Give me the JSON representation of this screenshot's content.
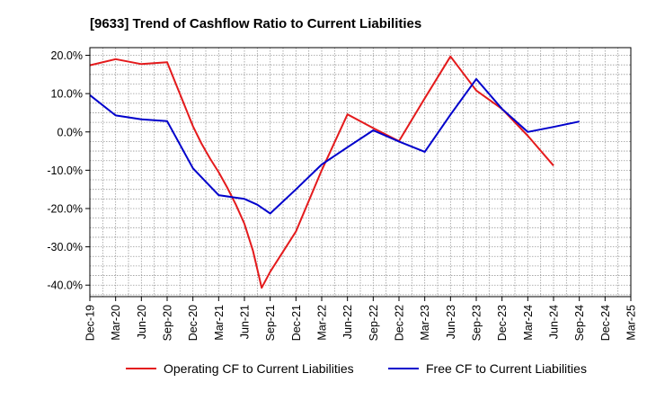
{
  "chart_data": {
    "type": "line",
    "title": "[9633]  Trend of Cashflow Ratio to Current Liabilities",
    "xlabel": "",
    "ylabel": "",
    "categories": [
      "Dec-19",
      "Mar-20",
      "Jun-20",
      "Sep-20",
      "Dec-20",
      "Mar-21",
      "Jun-21",
      "Sep-21",
      "Dec-21",
      "Mar-22",
      "Jun-22",
      "Sep-22",
      "Dec-22",
      "Mar-23",
      "Jun-23",
      "Sep-23",
      "Dec-23",
      "Mar-24",
      "Jun-24",
      "Sep-24",
      "Dec-24",
      "Mar-25"
    ],
    "ylim": [
      -43,
      22
    ],
    "yticks": [
      20,
      10,
      0,
      -10,
      -20,
      -30,
      -40
    ],
    "ytick_labels": [
      "20.0%",
      "10.0%",
      "0.0%",
      "-10.0%",
      "-20.0%",
      "-30.0%",
      "-40.0%"
    ],
    "grid": true,
    "legend_position": "bottom",
    "series": [
      {
        "name": "Operating CF to Current Liabilities",
        "color": "#e41a1c",
        "points": [
          {
            "x": 0,
            "y": 17.4
          },
          {
            "x": 1,
            "y": 19.0
          },
          {
            "x": 2,
            "y": 17.7
          },
          {
            "x": 3,
            "y": 18.2
          },
          {
            "x": 4,
            "y": 1.5
          },
          {
            "x": 4.33,
            "y": -3.0
          },
          {
            "x": 4.67,
            "y": -7.0
          },
          {
            "x": 5,
            "y": -10.5
          },
          {
            "x": 5.33,
            "y": -14.5
          },
          {
            "x": 5.67,
            "y": -19.0
          },
          {
            "x": 6,
            "y": -24.0
          },
          {
            "x": 6.33,
            "y": -31.0
          },
          {
            "x": 6.67,
            "y": -40.7
          },
          {
            "x": 7,
            "y": -36.5
          },
          {
            "x": 8,
            "y": -26.0
          },
          {
            "x": 9,
            "y": -10.0
          },
          {
            "x": 10,
            "y": 4.6
          },
          {
            "x": 11,
            "y": 1.0
          },
          {
            "x": 12,
            "y": -2.4
          },
          {
            "x": 13,
            "y": 8.8
          },
          {
            "x": 14,
            "y": 19.7
          },
          {
            "x": 15,
            "y": 10.8
          },
          {
            "x": 16,
            "y": 6.0
          },
          {
            "x": 17,
            "y": -1.0
          },
          {
            "x": 18,
            "y": -8.8
          }
        ]
      },
      {
        "name": "Free CF to Current Liabilities",
        "color": "#0000cc",
        "points": [
          {
            "x": 0,
            "y": 9.6
          },
          {
            "x": 1,
            "y": 4.3
          },
          {
            "x": 2,
            "y": 3.3
          },
          {
            "x": 3,
            "y": 2.8
          },
          {
            "x": 4,
            "y": -9.5
          },
          {
            "x": 4.5,
            "y": -13.0
          },
          {
            "x": 5,
            "y": -16.5
          },
          {
            "x": 5.5,
            "y": -17.0
          },
          {
            "x": 6,
            "y": -17.5
          },
          {
            "x": 6.5,
            "y": -19.0
          },
          {
            "x": 7,
            "y": -21.3
          },
          {
            "x": 8,
            "y": -15.0
          },
          {
            "x": 9,
            "y": -8.5
          },
          {
            "x": 10,
            "y": -4.0
          },
          {
            "x": 11,
            "y": 0.4
          },
          {
            "x": 12,
            "y": -2.5
          },
          {
            "x": 13,
            "y": -5.2
          },
          {
            "x": 14,
            "y": 4.5
          },
          {
            "x": 15,
            "y": 13.8
          },
          {
            "x": 16,
            "y": 6.0
          },
          {
            "x": 17,
            "y": 0.0
          },
          {
            "x": 18,
            "y": 1.3
          },
          {
            "x": 19,
            "y": 2.7
          }
        ]
      }
    ]
  }
}
